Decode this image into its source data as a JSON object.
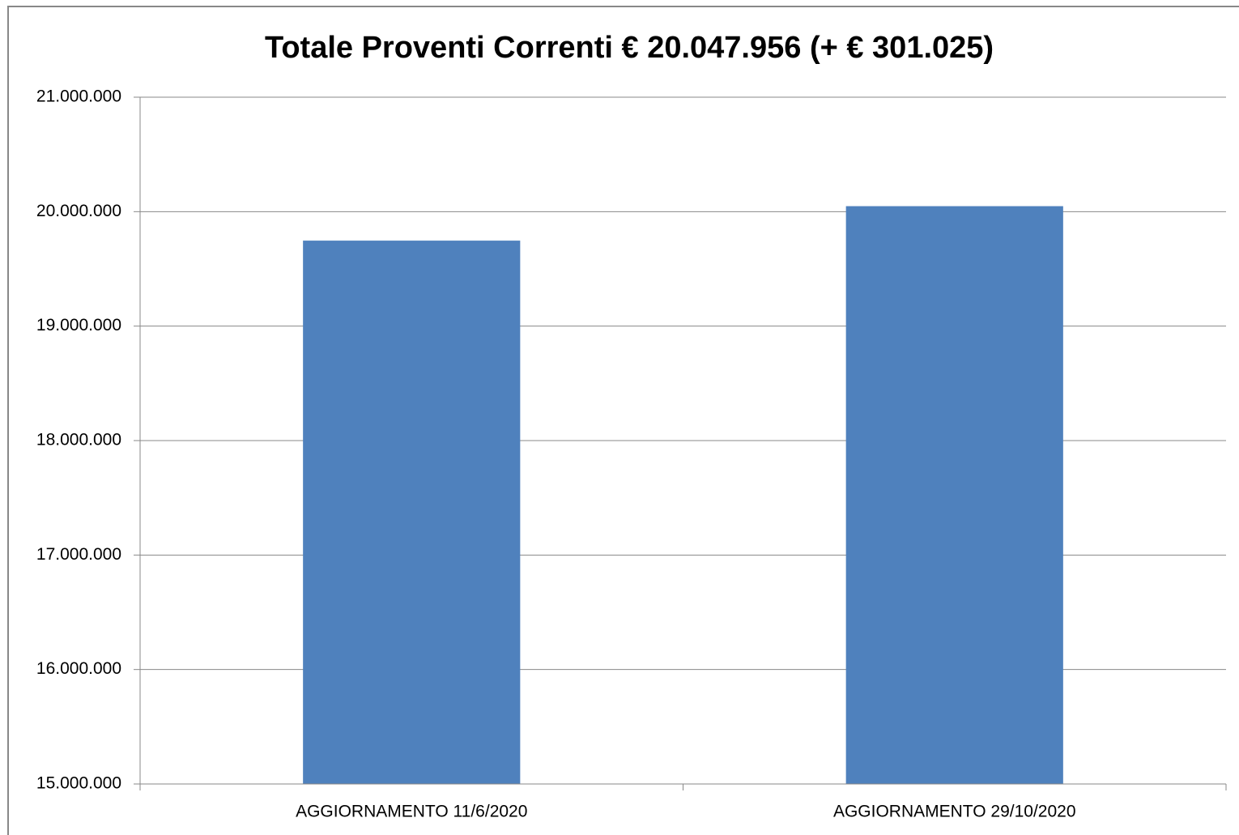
{
  "chart_data": {
    "type": "bar",
    "title": "Totale Proventi Correnti € 20.047.956 (+ € 301.025)",
    "categories": [
      "AGGIORNAMENTO 11/6/2020",
      "AGGIORNAMENTO 29/10/2020"
    ],
    "values": [
      19746931,
      20047956
    ],
    "color": "#4f81bd",
    "ylim": [
      15000000,
      21000000
    ],
    "yticks": [
      {
        "value": 15000000,
        "label": "15.000.000"
      },
      {
        "value": 16000000,
        "label": "16.000.000"
      },
      {
        "value": 17000000,
        "label": "17.000.000"
      },
      {
        "value": 18000000,
        "label": "18.000.000"
      },
      {
        "value": 19000000,
        "label": "19.000.000"
      },
      {
        "value": 20000000,
        "label": "20.000.000"
      },
      {
        "value": 21000000,
        "label": "21.000.000"
      }
    ],
    "grid": true
  }
}
